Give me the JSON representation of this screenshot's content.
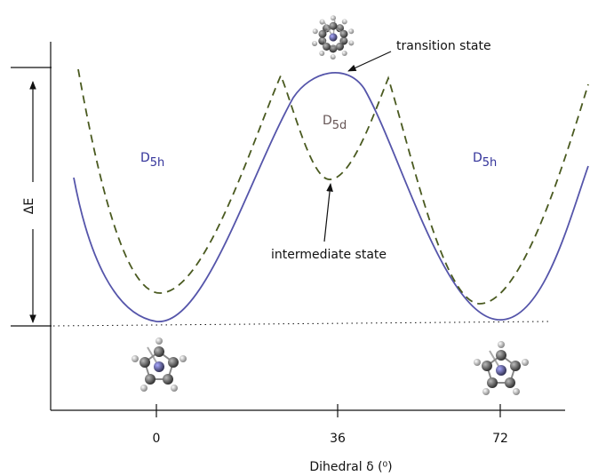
{
  "figure": {
    "x_axis_label": "Dihedral δ (⁰)",
    "x_tick_labels": [
      "0",
      "36",
      "72"
    ],
    "energy_label": "ΔE",
    "annotations": {
      "transition": "transition state",
      "intermediate": "intermediate state"
    },
    "symmetry_left": {
      "main": "D",
      "sub": "5h"
    },
    "symmetry_middle": {
      "main": "D",
      "sub": "5d"
    },
    "symmetry_right": {
      "main": "D",
      "sub": "5h"
    }
  }
}
